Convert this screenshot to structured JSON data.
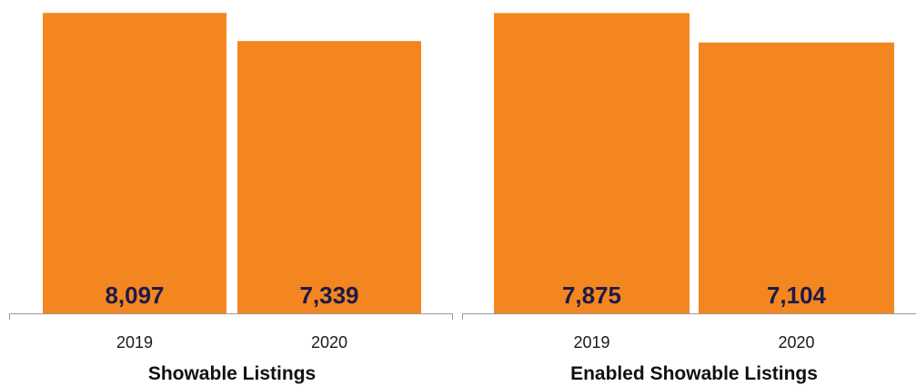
{
  "colors": {
    "bar": "#f4861f",
    "value_label": "#1c1a4a",
    "axis": "#9a9a9a"
  },
  "chart_data": [
    {
      "type": "bar",
      "title": "Showable Listings",
      "xlabel": "",
      "ylabel": "",
      "categories": [
        "2019",
        "2020"
      ],
      "values": [
        8097,
        7339
      ],
      "value_labels": [
        "8,097",
        "7,339"
      ],
      "ylim": [
        0,
        8200
      ],
      "grid": false,
      "legend": "none"
    },
    {
      "type": "bar",
      "title": "Enabled Showable Listings",
      "xlabel": "",
      "ylabel": "",
      "categories": [
        "2019",
        "2020"
      ],
      "values": [
        7875,
        7104
      ],
      "value_labels": [
        "7,875",
        "7,104"
      ],
      "ylim": [
        0,
        7980
      ],
      "grid": false,
      "legend": "none"
    }
  ]
}
